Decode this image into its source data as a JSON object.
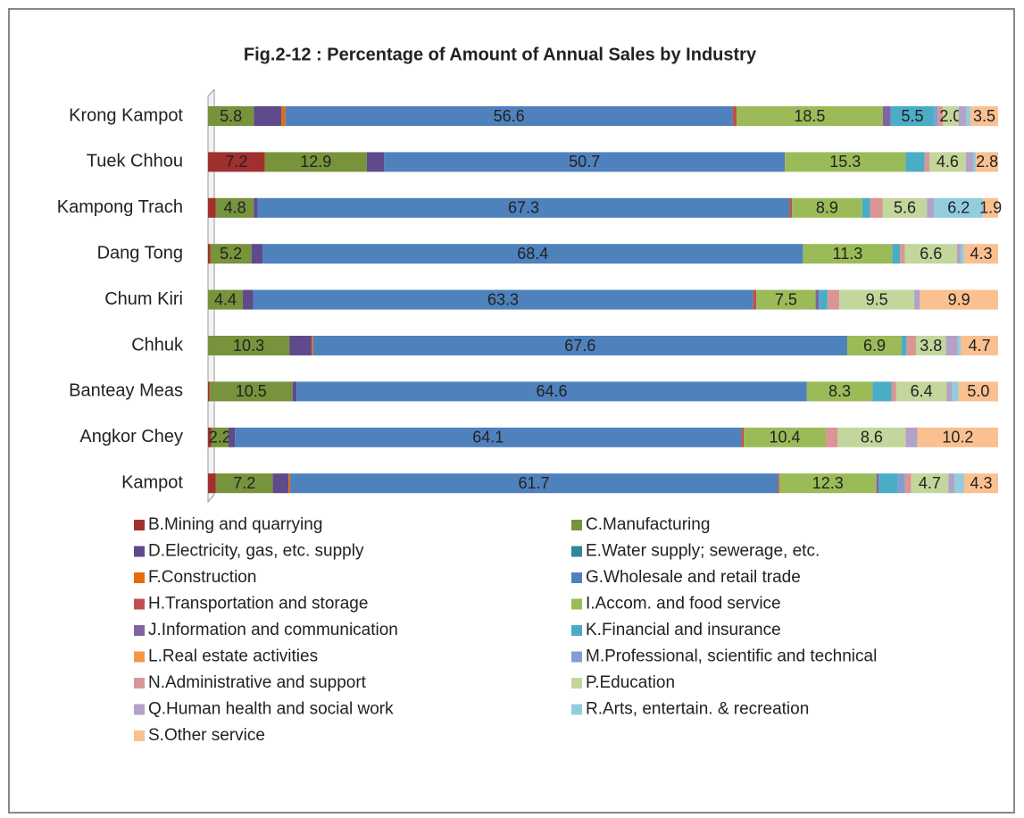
{
  "chart_data": {
    "type": "stacked_bar_horizontal_100",
    "title": "Fig.2-12 : Percentage of Amount of Annual Sales by  Industry",
    "categories": [
      "Krong Kampot",
      "Tuek Chhou",
      "Kampong Trach",
      "Dang Tong",
      "Chum Kiri",
      "Chhuk",
      "Banteay Meas",
      "Angkor Chey",
      "Kampot"
    ],
    "series": [
      {
        "name": "B.Mining and quarrying",
        "color": "#A0302E",
        "values": [
          0,
          7.2,
          1.0,
          0.3,
          0,
          0,
          0.2,
          0.4,
          1.0
        ],
        "value_labels": [
          null,
          "7.2",
          null,
          null,
          null,
          null,
          null,
          null,
          null
        ]
      },
      {
        "name": "C.Manufacturing",
        "color": "#77933C",
        "values": [
          5.8,
          12.9,
          4.8,
          5.2,
          4.4,
          10.3,
          10.5,
          2.2,
          7.2
        ],
        "value_labels": [
          "5.8",
          "12.9",
          "4.8",
          "5.2",
          "4.4",
          "10.3",
          "10.5",
          "2.2",
          "7.2"
        ]
      },
      {
        "name": "D.Electricity, gas, etc. supply",
        "color": "#5F4A8B",
        "values": [
          3.5,
          2.2,
          0.5,
          1.4,
          1.3,
          2.8,
          0.5,
          0.8,
          2.0
        ]
      },
      {
        "name": "E.Water supply; sewerage, etc.",
        "color": "#31859C",
        "values": [
          0,
          0,
          0,
          0,
          0,
          0,
          0,
          0,
          0
        ]
      },
      {
        "name": "F.Construction",
        "color": "#E46C0A",
        "values": [
          0.5,
          0,
          0,
          0,
          0,
          0.2,
          0,
          0,
          0.2
        ]
      },
      {
        "name": "G.Wholesale and retail trade",
        "color": "#4F81BD",
        "values": [
          56.6,
          50.7,
          67.3,
          68.4,
          63.3,
          67.6,
          64.6,
          64.1,
          61.7
        ],
        "value_labels": [
          "56.6",
          "50.7",
          "67.3",
          "68.4",
          "63.3",
          "67.6",
          "64.6",
          "64.1",
          "61.7"
        ]
      },
      {
        "name": "H.Transportation and storage",
        "color": "#C0504D",
        "values": [
          0.5,
          0,
          0.3,
          0,
          0.4,
          0,
          0,
          0.3,
          0.2
        ]
      },
      {
        "name": "I.Accom. and food service",
        "color": "#9BBB59",
        "values": [
          18.5,
          15.3,
          8.9,
          11.3,
          7.5,
          6.9,
          8.3,
          10.4,
          12.3
        ],
        "value_labels": [
          "18.5",
          "15.3",
          "8.9",
          "11.3",
          "7.5",
          "6.9",
          "8.3",
          "10.4",
          "12.3"
        ]
      },
      {
        "name": "J.Information and communication",
        "color": "#8064A2",
        "values": [
          1.0,
          0,
          0,
          0,
          0.4,
          0,
          0,
          0,
          0.3
        ]
      },
      {
        "name": "K.Financial and insurance",
        "color": "#4BACC6",
        "values": [
          5.5,
          2.4,
          1.0,
          1.0,
          1.1,
          0.6,
          2.4,
          0,
          2.4
        ],
        "value_labels": [
          "5.5",
          null,
          null,
          null,
          null,
          null,
          null,
          null,
          null
        ]
      },
      {
        "name": "L.Real estate activities",
        "color": "#F79646",
        "values": [
          0,
          0,
          0,
          0,
          0,
          0,
          0,
          0,
          0
        ]
      },
      {
        "name": "M.Professional, scientific and technical",
        "color": "#7F9FCF",
        "values": [
          0.5,
          0,
          0,
          0,
          0,
          0,
          0,
          0,
          0.9
        ]
      },
      {
        "name": "N.Administrative and support",
        "color": "#D99694",
        "values": [
          0.6,
          0.6,
          1.6,
          0.6,
          1.5,
          1.2,
          0.6,
          1.5,
          0.8
        ]
      },
      {
        "name": "P.Education",
        "color": "#C3D69B",
        "values": [
          2.0,
          4.6,
          5.6,
          6.6,
          9.5,
          3.8,
          6.4,
          8.6,
          4.7
        ],
        "value_labels": [
          "2.0",
          "4.6",
          "5.6",
          "6.6",
          "9.5",
          "3.8",
          "6.4",
          "8.6",
          "4.7"
        ]
      },
      {
        "name": "Q.Human health and social work",
        "color": "#B3A2C7",
        "values": [
          1.0,
          1.0,
          0.9,
          0.5,
          0.7,
          1.5,
          0.7,
          1.5,
          0.8
        ]
      },
      {
        "name": "R.Arts, entertain. & recreation",
        "color": "#93CDDD",
        "values": [
          0.5,
          0.3,
          6.2,
          0.4,
          0,
          0.4,
          0.8,
          0,
          1.2
        ],
        "value_labels": [
          null,
          null,
          "6.2",
          null,
          null,
          null,
          null,
          null,
          null
        ]
      },
      {
        "name": "S.Other service",
        "color": "#FAC090",
        "values": [
          3.5,
          2.8,
          1.9,
          4.3,
          9.9,
          4.7,
          5.0,
          10.2,
          4.3
        ],
        "value_labels": [
          "3.5",
          "2.8",
          "1.9",
          "4.3",
          "9.9",
          "4.7",
          "5.0",
          "10.2",
          "4.3"
        ]
      }
    ]
  }
}
